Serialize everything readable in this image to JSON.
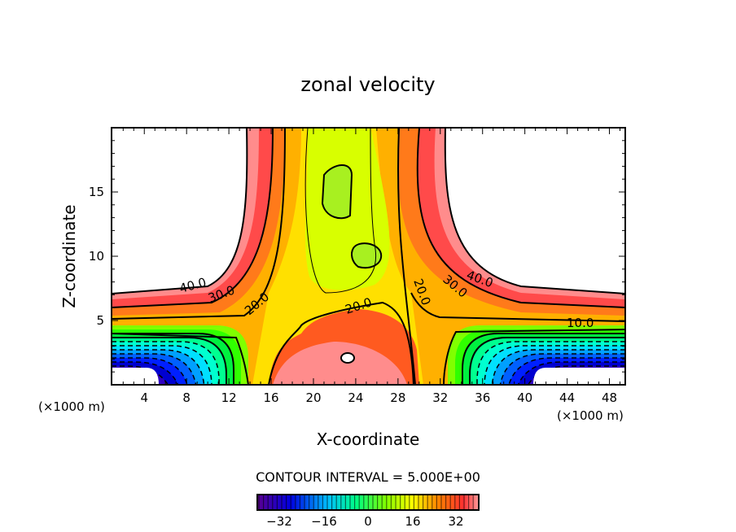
{
  "chart_data": {
    "type": "heatmap",
    "subtype": "filled-contour",
    "title": "zonal velocity",
    "xlabel": "X-coordinate",
    "ylabel": "Z-coordinate",
    "x_unit_left": "(×1000 m)",
    "x_unit_right": "(×1000 m)",
    "xlim": [
      0.9,
      49.5
    ],
    "ylim": [
      0,
      20
    ],
    "x_ticks": [
      "4",
      "8",
      "12",
      "16",
      "20",
      "24",
      "28",
      "32",
      "36",
      "40",
      "44",
      "48"
    ],
    "y_ticks": [
      "5",
      "10",
      "15"
    ],
    "contour_labels": [
      "40.0",
      "30.0",
      "20.0",
      "20.0",
      "20.0",
      "30.0",
      "40.0",
      "10.0"
    ],
    "contour_interval_text": "CONTOUR INTERVAL = 5.000E+00",
    "contour_interval": 5.0,
    "colorbar": {
      "range": [
        -40,
        40
      ],
      "ticks": [
        "−32",
        "−16",
        "0",
        "16",
        "32"
      ],
      "colors": [
        "#5a0090",
        "#0000ff",
        "#00ffff",
        "#00ff00",
        "#ffff00",
        "#ff8000",
        "#ff3030",
        "#ff9090"
      ]
    },
    "description_values": {
      "max_region": "> 40 near x 18-30, z 0-3",
      "min_region": "< -35 near x 5 and x 40, z 0-1"
    }
  }
}
